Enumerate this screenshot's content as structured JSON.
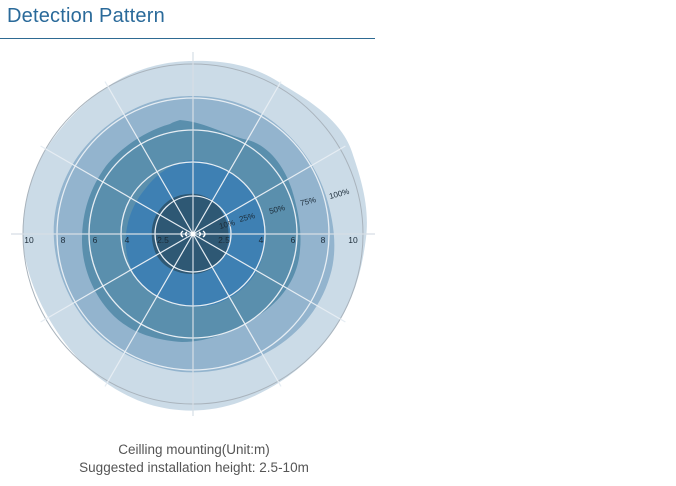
{
  "title": "Detection Pattern",
  "axis_labels": {
    "left": [
      "10",
      "8",
      "6",
      "4",
      "2.5"
    ],
    "right": [
      "2.5",
      "4",
      "6",
      "8",
      "10"
    ]
  },
  "zone_labels": [
    "10%",
    "25%",
    "50%",
    "75%",
    "100%"
  ],
  "caption": {
    "line1": "Ceilling mounting(Unit:m)",
    "line2": "Suggested installation height: 2.5-10m"
  },
  "colors": {
    "title": "#2a6a9a",
    "zone_100": "#c8d9e6",
    "zone_75": "#8fb2cc",
    "zone_50": "#5a8fad",
    "zone_25": "#3e80b3",
    "zone_10": "#2e5874",
    "grid": "#e6edf3"
  }
}
